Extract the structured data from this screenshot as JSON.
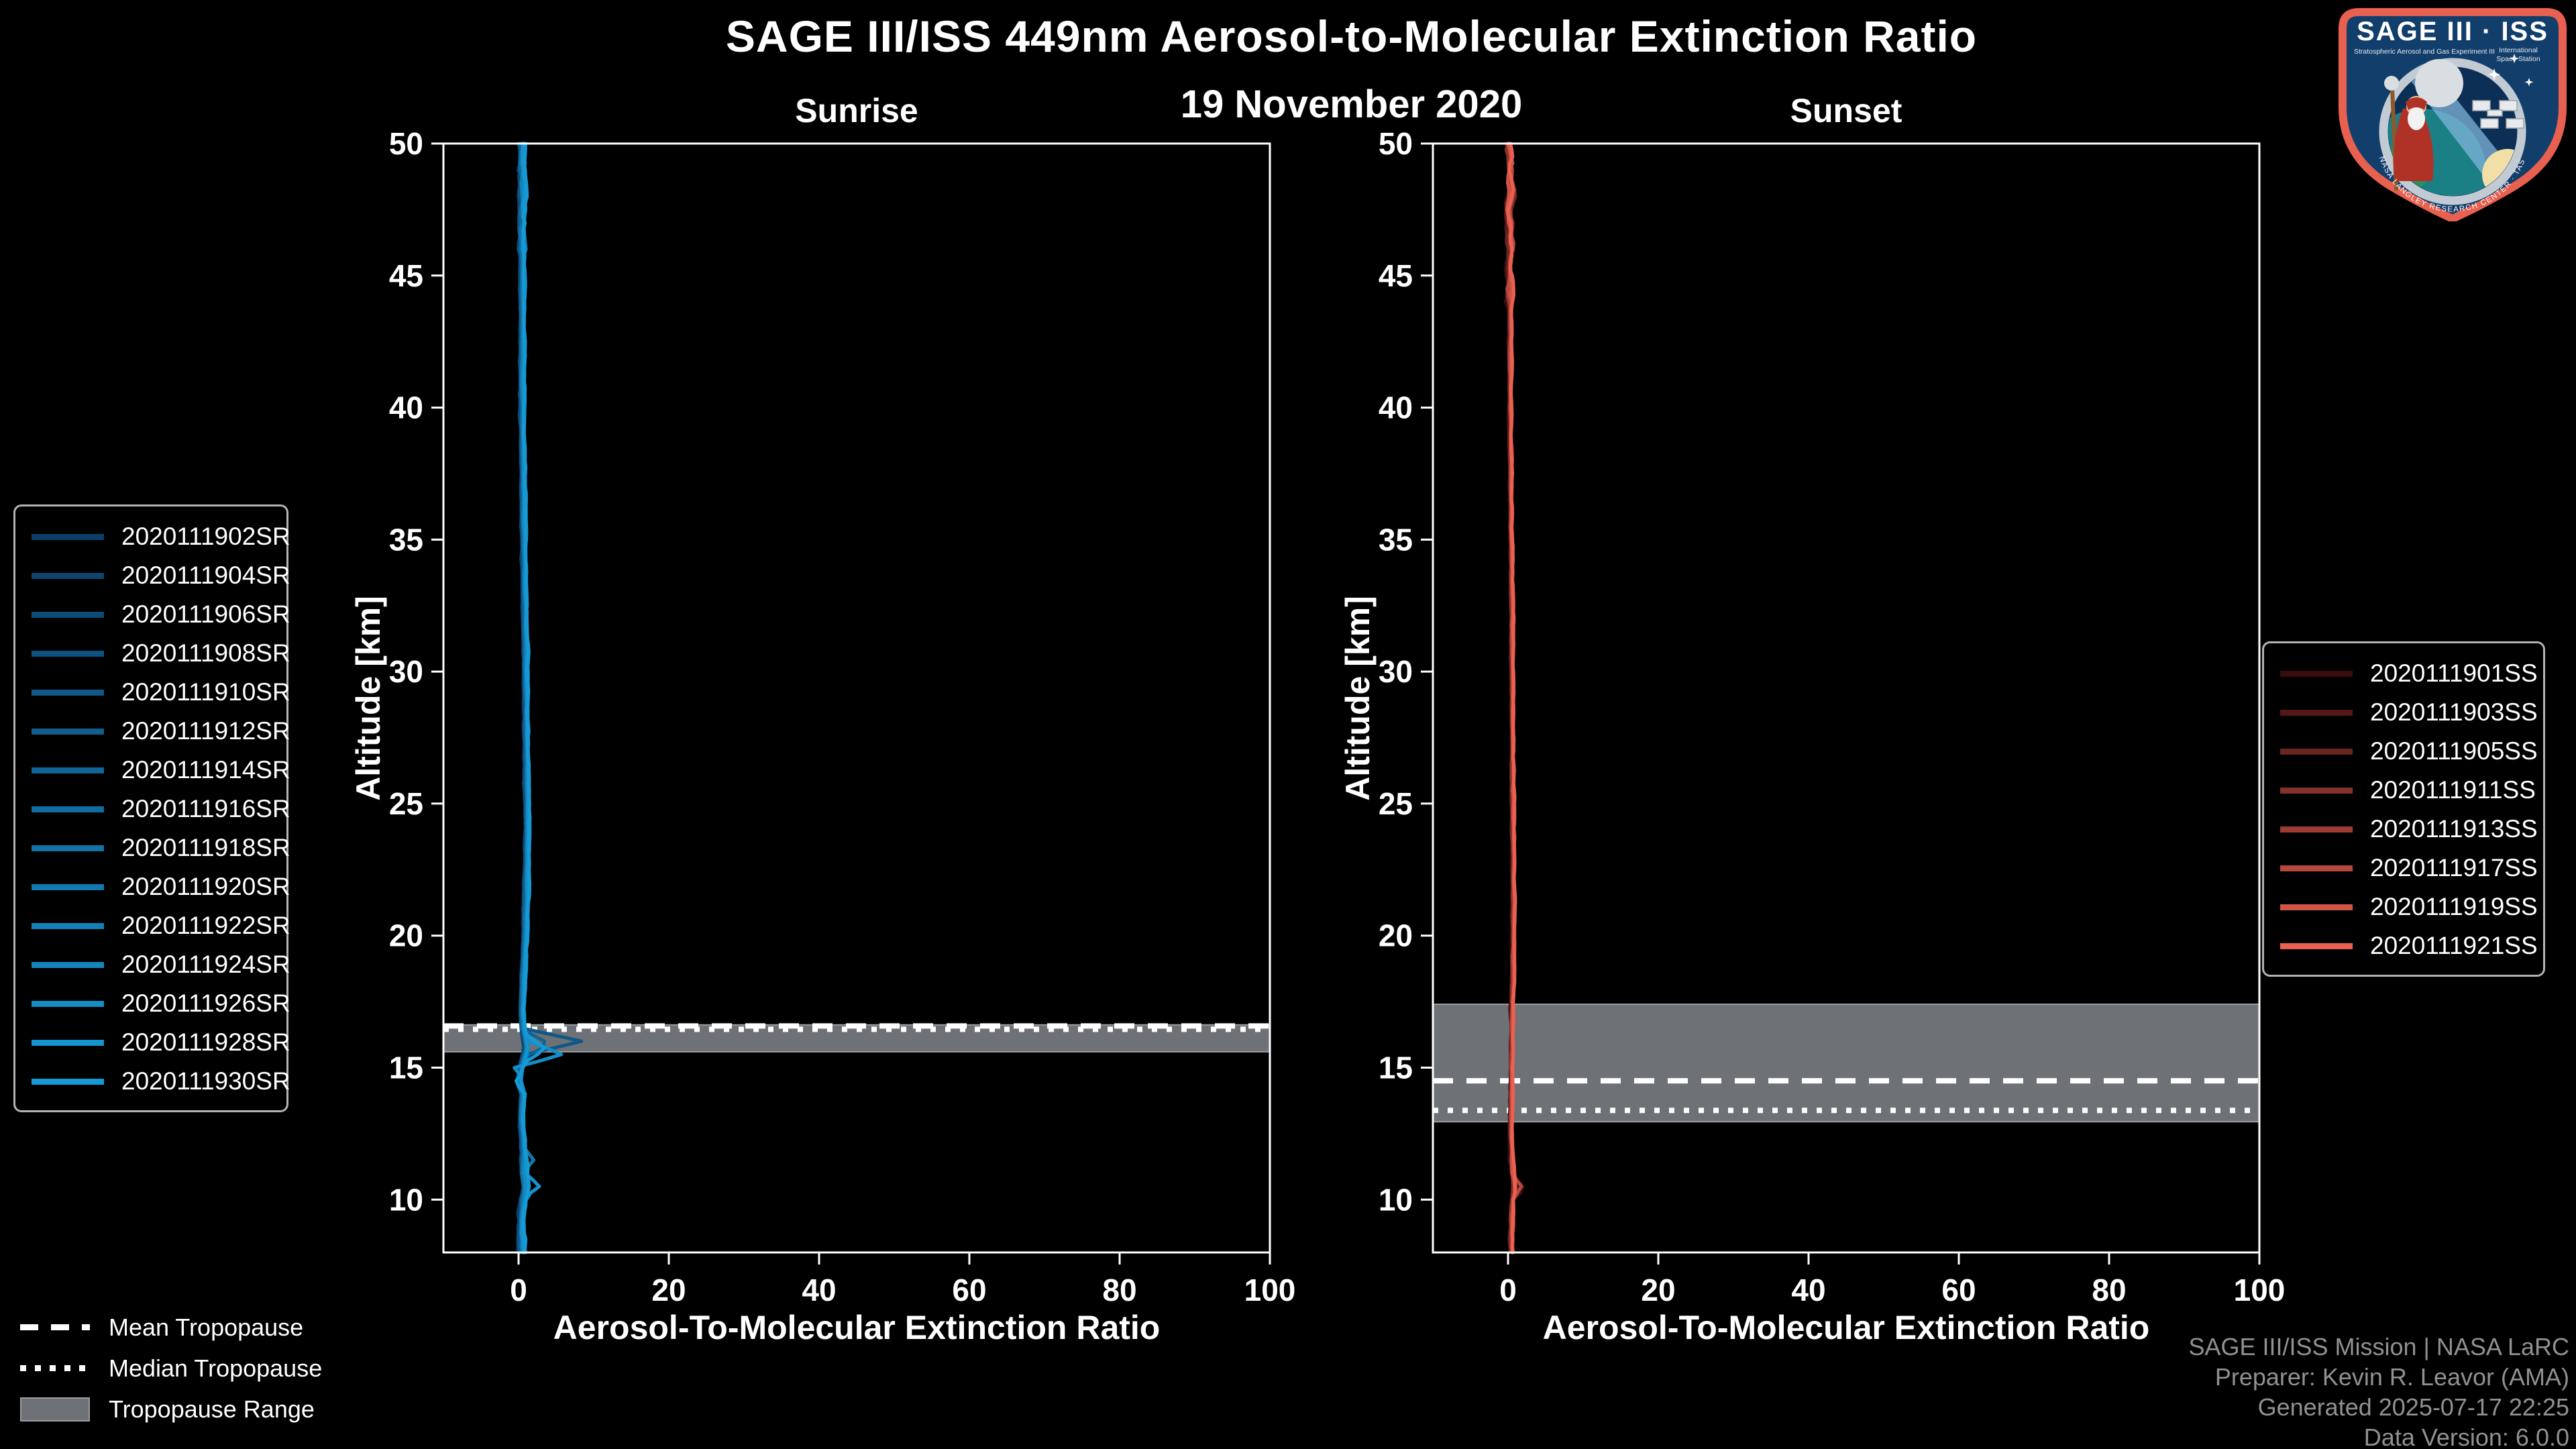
{
  "header": {
    "title": "SAGE III/ISS 449nm Aerosol-to-Molecular Extinction Ratio",
    "date": "19 November 2020"
  },
  "footer": {
    "lines": [
      "SAGE III/ISS Mission | NASA LaRC",
      "Preparer: Kevin R. Leavor (AMA)",
      "Generated 2025-07-17 22:25",
      "Data Version: 6.0.0"
    ]
  },
  "logo": {
    "title": "SAGE III · ISS",
    "subtitle_left": "Stratospheric Aerosol and Gas Experiment III",
    "subtitle_right_1": "International",
    "subtitle_right_2": "Space Station",
    "ring_text": "BALL · NASA LANGLEY RESEARCH CENTER · TAS-I · ESA"
  },
  "colors": {
    "background": "#000000",
    "foreground": "#ffffff",
    "band_fill": "#6e7176",
    "band_edge": "#9a9da2",
    "legend_border": "#b3b3b3",
    "footer_text": "#8f9193",
    "patch_border": "#E8604F",
    "patch_field": "#123E6C"
  },
  "tropopause_legend": [
    {
      "label": "Mean Tropopause",
      "style": "dashed"
    },
    {
      "label": "Median Tropopause",
      "style": "dotted"
    },
    {
      "label": "Tropopause Range",
      "style": "band"
    }
  ],
  "chart_data": [
    {
      "type": "line",
      "panel": "sunrise",
      "title": "Sunrise",
      "xlabel": "Aerosol-To-Molecular Extinction Ratio",
      "ylabel": "Altitude [km]",
      "xlim": [
        -10,
        100
      ],
      "ylim": [
        8,
        50
      ],
      "xticks": [
        0,
        20,
        40,
        60,
        80,
        100
      ],
      "yticks": [
        10,
        15,
        20,
        25,
        30,
        35,
        40,
        45,
        50
      ],
      "grid": false,
      "tropopause": {
        "mean_km": 16.58,
        "median_km": 16.45,
        "range_km": [
          15.6,
          16.62
        ]
      },
      "seed_base": 11,
      "offset_step": 0.04,
      "noise": {
        "top_above": 46,
        "low_below": 11.5,
        "top_amp": 0.32,
        "mid_amp": 0.14,
        "low_amp": 0.26
      },
      "base_profile": [
        [
          8,
          0.5
        ],
        [
          8.6,
          0.42
        ],
        [
          9,
          0.45
        ],
        [
          9.5,
          0.5
        ],
        [
          10,
          0.7
        ],
        [
          10.4,
          0.95
        ],
        [
          10.7,
          0.85
        ],
        [
          11,
          0.7
        ],
        [
          11.5,
          0.75
        ],
        [
          12,
          0.6
        ],
        [
          12.5,
          0.5
        ],
        [
          13,
          0.42
        ],
        [
          13.5,
          0.45
        ],
        [
          14,
          0.55
        ],
        [
          14.4,
          0.1
        ],
        [
          14.8,
          0.25
        ],
        [
          15.1,
          0.45
        ],
        [
          15.45,
          0.8
        ],
        [
          15.8,
          1.1
        ],
        [
          16.1,
          0.8
        ],
        [
          16.5,
          0.55
        ],
        [
          17,
          0.45
        ],
        [
          18,
          0.55
        ],
        [
          19,
          0.7
        ],
        [
          20,
          0.85
        ],
        [
          21,
          0.95
        ],
        [
          22,
          1.05
        ],
        [
          23,
          1.1
        ],
        [
          24,
          1.15
        ],
        [
          25,
          1.12
        ],
        [
          26,
          1.08
        ],
        [
          27,
          1.05
        ],
        [
          28,
          1.0
        ],
        [
          29,
          1.0
        ],
        [
          30,
          0.95
        ],
        [
          31,
          0.9
        ],
        [
          32,
          0.85
        ],
        [
          33,
          0.8
        ],
        [
          34,
          0.75
        ],
        [
          35,
          0.7
        ],
        [
          36,
          0.65
        ],
        [
          37,
          0.6
        ],
        [
          38,
          0.58
        ],
        [
          39,
          0.55
        ],
        [
          40,
          0.5
        ],
        [
          41,
          0.45
        ],
        [
          42,
          0.5
        ],
        [
          43,
          0.52
        ],
        [
          44,
          0.5
        ],
        [
          45,
          0.5
        ],
        [
          46,
          0.52
        ],
        [
          47,
          0.5
        ],
        [
          48,
          0.55
        ],
        [
          49,
          0.5
        ],
        [
          50,
          0.45
        ]
      ],
      "series": [
        {
          "label": "2020111902SR",
          "color": "#0C3E68",
          "peaks": []
        },
        {
          "label": "2020111904SR",
          "color": "#0D4570",
          "peaks": []
        },
        {
          "label": "2020111906SR",
          "color": "#0D4B78",
          "peaks": []
        },
        {
          "label": "2020111908SR",
          "color": "#0E5280",
          "peaks": []
        },
        {
          "label": "2020111910SR",
          "color": "#0F5887",
          "peaks": [
            {
              "alt": 16.0,
              "value": 7.6,
              "width": 0.5
            }
          ]
        },
        {
          "label": "2020111912SR",
          "color": "#105F8F",
          "peaks": []
        },
        {
          "label": "2020111914SR",
          "color": "#106597",
          "peaks": [
            {
              "alt": 15.9,
              "value": 3.2,
              "width": 0.55
            }
          ]
        },
        {
          "label": "2020111916SR",
          "color": "#116C9F",
          "peaks": []
        },
        {
          "label": "2020111918SR",
          "color": "#1273A7",
          "peaks": []
        },
        {
          "label": "2020111920SR",
          "color": "#1279AF",
          "peaks": [
            {
              "alt": 11.5,
              "value": 1.3,
              "width": 0.5
            }
          ]
        },
        {
          "label": "2020111922SR",
          "color": "#1380B7",
          "peaks": []
        },
        {
          "label": "2020111924SR",
          "color": "#1486BE",
          "peaks": []
        },
        {
          "label": "2020111926SR",
          "color": "#158DC6",
          "peaks": [
            {
              "alt": 15.5,
              "value": 4.6,
              "width": 0.5
            },
            {
              "alt": 15.0,
              "value": -1.2,
              "width": 0.35
            }
          ]
        },
        {
          "label": "2020111928SR",
          "color": "#1593CE",
          "peaks": [
            {
              "alt": 10.55,
              "value": 1.9,
              "width": 0.4
            }
          ]
        },
        {
          "label": "2020111930SR",
          "color": "#169AD6",
          "peaks": [
            {
              "alt": 15.7,
              "value": 2.2,
              "width": 0.5
            },
            {
              "alt": 14.45,
              "value": -0.7,
              "width": 0.35
            }
          ]
        }
      ]
    },
    {
      "type": "line",
      "panel": "sunset",
      "title": "Sunset",
      "xlabel": "Aerosol-To-Molecular Extinction Ratio",
      "ylabel": "Altitude [km]",
      "xlim": [
        -10,
        100
      ],
      "ylim": [
        8,
        50
      ],
      "xticks": [
        0,
        20,
        40,
        60,
        80,
        100
      ],
      "yticks": [
        10,
        15,
        20,
        25,
        30,
        35,
        40,
        45,
        50
      ],
      "grid": false,
      "tropopause": {
        "mean_km": 14.5,
        "median_km": 13.38,
        "range_km": [
          12.95,
          17.4
        ]
      },
      "seed_base": 77,
      "offset_step": 0.05,
      "noise": {
        "top_above": 44,
        "low_below": 11.5,
        "top_amp": 0.4,
        "mid_amp": 0.12,
        "low_amp": 0.2
      },
      "base_profile": [
        [
          8,
          0.45
        ],
        [
          8.5,
          0.4
        ],
        [
          9,
          0.45
        ],
        [
          9.5,
          0.5
        ],
        [
          10,
          0.65
        ],
        [
          10.35,
          0.85
        ],
        [
          10.7,
          0.7
        ],
        [
          11,
          0.55
        ],
        [
          11.5,
          0.5
        ],
        [
          12,
          0.45
        ],
        [
          13,
          0.4
        ],
        [
          14,
          0.45
        ],
        [
          15,
          0.5
        ],
        [
          16,
          0.55
        ],
        [
          17,
          0.55
        ],
        [
          18,
          0.6
        ],
        [
          19,
          0.65
        ],
        [
          20,
          0.7
        ],
        [
          21,
          0.7
        ],
        [
          22,
          0.7
        ],
        [
          23,
          0.68
        ],
        [
          24,
          0.65
        ],
        [
          25,
          0.62
        ],
        [
          26,
          0.6
        ],
        [
          27,
          0.6
        ],
        [
          28,
          0.6
        ],
        [
          29,
          0.58
        ],
        [
          30,
          0.55
        ],
        [
          31,
          0.52
        ],
        [
          32,
          0.5
        ],
        [
          33,
          0.48
        ],
        [
          34,
          0.45
        ],
        [
          35,
          0.42
        ],
        [
          36,
          0.4
        ],
        [
          37,
          0.38
        ],
        [
          38,
          0.35
        ],
        [
          39,
          0.32
        ],
        [
          40,
          0.3
        ],
        [
          41,
          0.28
        ],
        [
          42,
          0.25
        ],
        [
          43,
          0.28
        ],
        [
          44,
          0.25
        ],
        [
          45,
          0.22
        ],
        [
          46,
          0.25
        ],
        [
          47,
          0.2
        ],
        [
          47.6,
          0.05
        ],
        [
          48.2,
          0.45
        ],
        [
          48.8,
          0.15
        ],
        [
          49.4,
          0.3
        ],
        [
          50,
          0.1
        ]
      ],
      "series": [
        {
          "label": "2020111901SS",
          "color": "#380D0D",
          "peaks": [
            {
              "alt": 10.45,
              "value": 1.5,
              "width": 0.45
            }
          ]
        },
        {
          "label": "2020111903SS",
          "color": "#521917",
          "peaks": [
            {
              "alt": 10.3,
              "value": 1.0,
              "width": 0.4
            }
          ]
        },
        {
          "label": "2020111905SS",
          "color": "#6B2520",
          "peaks": [
            {
              "alt": 47.9,
              "value": 0.8,
              "width": 0.9
            }
          ]
        },
        {
          "label": "2020111911SS",
          "color": "#85312A",
          "peaks": []
        },
        {
          "label": "2020111913SS",
          "color": "#9E3C33",
          "peaks": []
        },
        {
          "label": "2020111917SS",
          "color": "#B8483D",
          "peaks": [
            {
              "alt": 10.5,
              "value": 0.8,
              "width": 0.4
            }
          ]
        },
        {
          "label": "2020111919SS",
          "color": "#D15446",
          "peaks": []
        },
        {
          "label": "2020111921SS",
          "color": "#EB6050",
          "peaks": []
        }
      ]
    }
  ]
}
